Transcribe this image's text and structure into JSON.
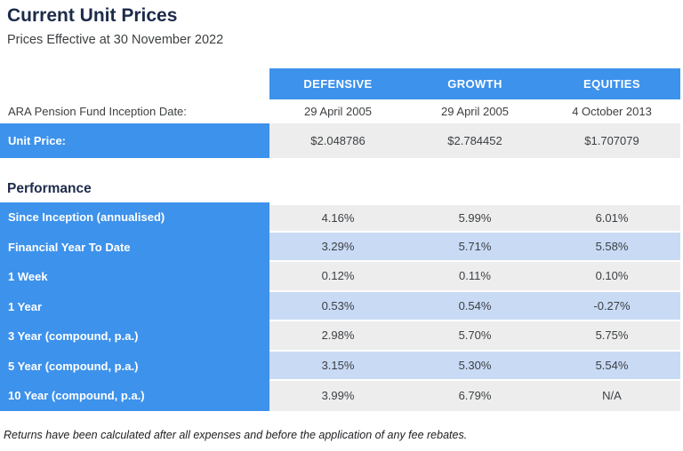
{
  "page": {
    "title": "Current Unit Prices",
    "subtitle": "Prices Effective at 30 November 2022",
    "footnote": "Returns have been calculated after all expenses and before the application of any fee rebates."
  },
  "colors": {
    "accent_blue": "#3d92ec",
    "stripe_gray": "#ededed",
    "stripe_blue": "#c9daf5",
    "title_navy": "#1d2b4a",
    "body_text": "#3c4043",
    "header_text": "#ffffff"
  },
  "prices_table": {
    "columns": [
      "DEFENSIVE",
      "GROWTH",
      "EQUITIES"
    ],
    "inception_row": {
      "label": "ARA Pension Fund Inception Date:",
      "values": [
        "29 April 2005",
        "29 April 2005",
        "4 October 2013"
      ]
    },
    "unit_price_row": {
      "label": "Unit Price:",
      "values": [
        "$2.048786",
        "$2.784452",
        "$1.707079"
      ]
    }
  },
  "performance": {
    "heading": "Performance",
    "rows": [
      {
        "label": "Since Inception (annualised)",
        "values": [
          "4.16%",
          "5.99%",
          "6.01%"
        ]
      },
      {
        "label": "Financial Year To Date",
        "values": [
          "3.29%",
          "5.71%",
          "5.58%"
        ]
      },
      {
        "label": "1 Week",
        "values": [
          "0.12%",
          "0.11%",
          "0.10%"
        ]
      },
      {
        "label": "1 Year",
        "values": [
          "0.53%",
          "0.54%",
          "-0.27%"
        ]
      },
      {
        "label": "3 Year (compound, p.a.)",
        "values": [
          "2.98%",
          "5.70%",
          "5.75%"
        ]
      },
      {
        "label": "5 Year (compound, p.a.)",
        "values": [
          "3.15%",
          "5.30%",
          "5.54%"
        ]
      },
      {
        "label": "10 Year (compound, p.a.)",
        "values": [
          "3.99%",
          "6.79%",
          "N/A"
        ]
      }
    ]
  }
}
